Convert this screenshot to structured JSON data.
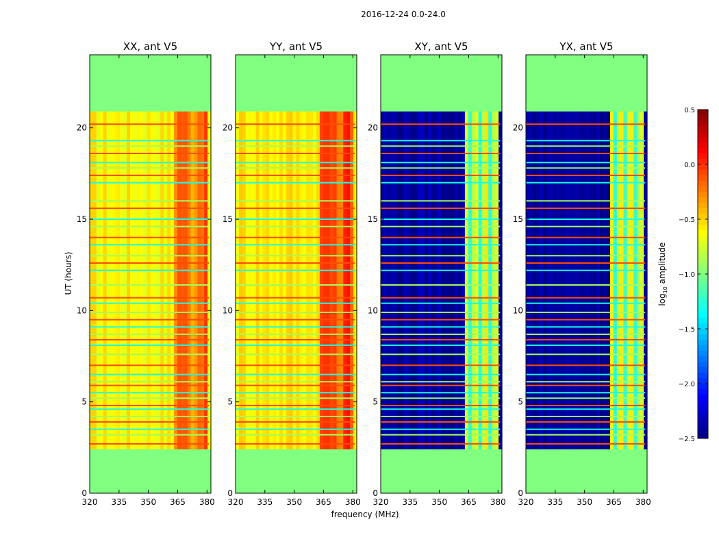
{
  "suptitle": "2016-12-24 0.0-24.0",
  "colorbar": {
    "label_prefix": "log",
    "label_sub": "10",
    "label_suffix": " amplitude",
    "ticks": [
      "0.5",
      "0.0",
      "−0.5",
      "−1.0",
      "−1.5",
      "−2.0",
      "−2.5"
    ],
    "tick_values": [
      0.5,
      0.0,
      -0.5,
      -1.0,
      -1.5,
      -2.0,
      -2.5
    ],
    "vmin": -2.5,
    "vmax": 0.5,
    "colormap": "jet"
  },
  "chart_data": {
    "type": "heatmap",
    "title": "2016-12-24 0.0-24.0",
    "xlabel": "frequency (MHz)",
    "ylabel": "UT (hours)",
    "xlim": [
      320,
      382
    ],
    "ylim": [
      0,
      24
    ],
    "xticks": [
      320,
      335,
      350,
      365,
      380
    ],
    "yticks": [
      0,
      5,
      10,
      15,
      20
    ],
    "data_time_range": [
      2.4,
      20.9
    ],
    "bright_band_mhz": [
      362,
      380
    ],
    "flagged_rows_ut": [
      2.7,
      3.2,
      3.5,
      3.9,
      4.2,
      4.6,
      4.8,
      5.2,
      5.5,
      5.9,
      6.1,
      6.5,
      7.0,
      7.6,
      8.1,
      8.4,
      8.7,
      9.1,
      9.5,
      9.9,
      10.4,
      10.7,
      11.4,
      12.2,
      12.6,
      13.0,
      13.6,
      14.0,
      14.6,
      15.0,
      15.6,
      16.0,
      17.0,
      17.4,
      17.8,
      18.1,
      18.6,
      19.0,
      19.3,
      20.2
    ],
    "panels": [
      {
        "title": "XX, ant V5",
        "kind": "auto",
        "base_level": -0.6,
        "band_level": -0.2
      },
      {
        "title": "YY, ant V5",
        "kind": "auto",
        "base_level": -0.55,
        "band_level": -0.1
      },
      {
        "title": "XY, ant V5",
        "kind": "cross",
        "base_level": -2.4,
        "band_level": -0.9
      },
      {
        "title": "YX, ant V5",
        "kind": "cross",
        "base_level": -2.4,
        "band_level": -0.9
      }
    ],
    "fill_level": -1.0
  }
}
